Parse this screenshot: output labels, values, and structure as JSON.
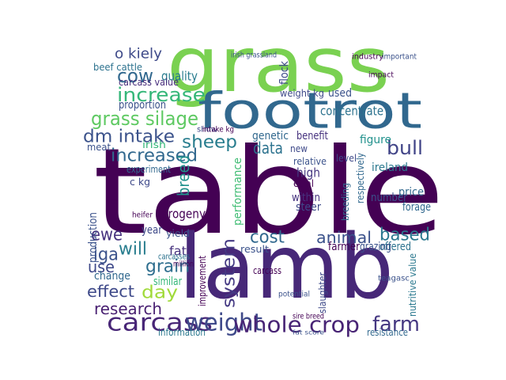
{
  "words": [
    "table",
    "lamb",
    "grass",
    "footrot",
    "carcass",
    "weight",
    "whole crop",
    "farm",
    "grass silage",
    "increase",
    "cow",
    "quality",
    "o kiely",
    "beef cattle",
    "dm intake",
    "sheep",
    "increased",
    "breed",
    "bull",
    "data",
    "cost",
    "animal",
    "based",
    "ewe",
    "iga",
    "will",
    "grain",
    "system",
    "use",
    "effect",
    "day",
    "research",
    "fat",
    "production",
    "progeny",
    "performance",
    "concentrate",
    "genetic",
    "benefit",
    "number",
    "price",
    "figure",
    "ireland",
    "forage",
    "high",
    "within",
    "steer",
    "offered",
    "farmer",
    "grazing",
    "information",
    "resistance",
    "nutritive value",
    "carcass value",
    "proportion",
    "weight kg",
    "irish grassland",
    "industry",
    "flock",
    "respectively",
    "result",
    "carcass",
    "improvement",
    "slaughter",
    "change",
    "year",
    "yield",
    "carcasses",
    "million",
    "similar",
    "c kg",
    "heifer",
    "meat",
    "irish",
    "ie",
    "new",
    "et al",
    "level",
    "used",
    "relative",
    "sire breed",
    "fat score",
    "experiment",
    "show",
    "intake kg",
    "breeding",
    "potential",
    "important",
    "impact",
    "teagasc"
  ]
}
